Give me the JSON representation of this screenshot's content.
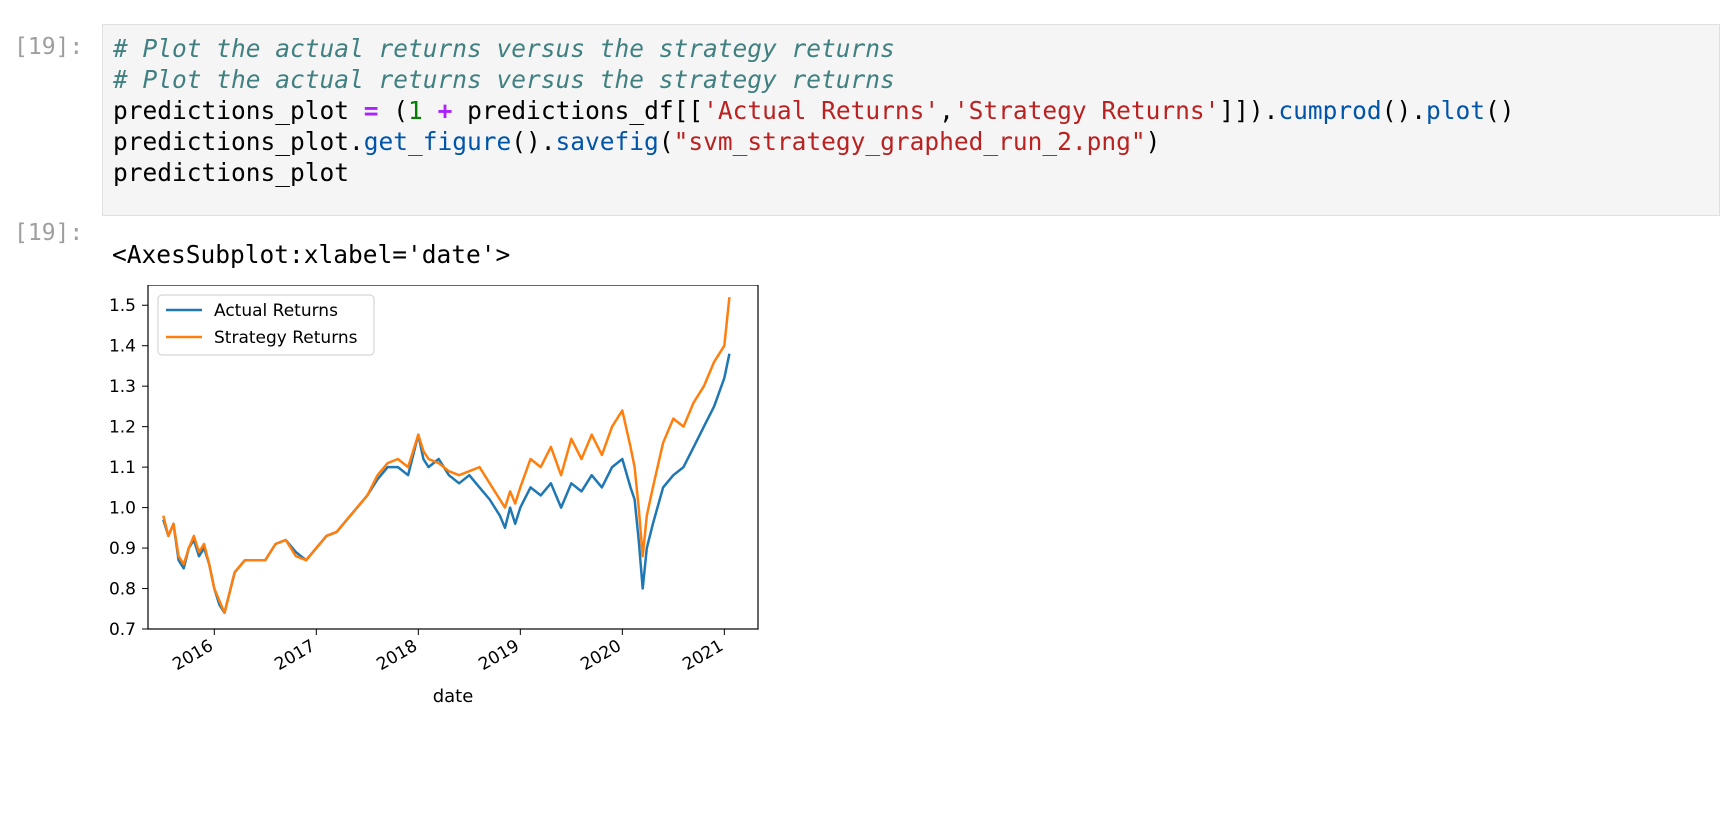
{
  "cell": {
    "in_prompt": "[19]:",
    "out_prompt": "[19]:",
    "code_lines": [
      [
        {
          "t": "# Plot the actual returns versus the strategy returns",
          "c": "cm"
        }
      ],
      [
        {
          "t": "# Plot the actual returns versus the strategy returns",
          "c": "cm"
        }
      ],
      [
        {
          "t": "predictions_plot ",
          "c": ""
        },
        {
          "t": "=",
          "c": "op"
        },
        {
          "t": " (",
          "c": ""
        },
        {
          "t": "1",
          "c": "num"
        },
        {
          "t": " ",
          "c": ""
        },
        {
          "t": "+",
          "c": "op"
        },
        {
          "t": " predictions_df[[",
          "c": ""
        },
        {
          "t": "'Actual Returns'",
          "c": "str"
        },
        {
          "t": ",",
          "c": ""
        },
        {
          "t": "'Strategy Returns'",
          "c": "str"
        },
        {
          "t": "]]).",
          "c": ""
        },
        {
          "t": "cumprod",
          "c": "fn"
        },
        {
          "t": "().",
          "c": ""
        },
        {
          "t": "plot",
          "c": "fn"
        },
        {
          "t": "()",
          "c": ""
        }
      ],
      [
        {
          "t": "predictions_plot.",
          "c": ""
        },
        {
          "t": "get_figure",
          "c": "fn"
        },
        {
          "t": "().",
          "c": ""
        },
        {
          "t": "savefig",
          "c": "fn"
        },
        {
          "t": "(",
          "c": ""
        },
        {
          "t": "\"svm_strategy_graphed_run_2.png\"",
          "c": "str"
        },
        {
          "t": ")",
          "c": ""
        }
      ],
      [
        {
          "t": "predictions_plot",
          "c": ""
        }
      ]
    ],
    "output_text": "<AxesSubplot:xlabel='date'>"
  },
  "chart_data": {
    "type": "line",
    "xlabel": "date",
    "ylabel": "",
    "xlim": [
      2015.35,
      2021.33
    ],
    "ylim": [
      0.7,
      1.55
    ],
    "xticks": [
      2016,
      2017,
      2018,
      2019,
      2020,
      2021
    ],
    "xtick_labels": [
      "2016",
      "2017",
      "2018",
      "2019",
      "2020",
      "2021"
    ],
    "yticks": [
      0.7,
      0.8,
      0.9,
      1.0,
      1.1,
      1.2,
      1.3,
      1.4,
      1.5
    ],
    "ytick_labels": [
      "0.7",
      "0.8",
      "0.9",
      "1.0",
      "1.1",
      "1.2",
      "1.3",
      "1.4",
      "1.5"
    ],
    "legend_position": "upper-left",
    "grid": false,
    "series": [
      {
        "name": "Actual Returns",
        "color": "#1f77b4",
        "x": [
          2015.5,
          2015.55,
          2015.6,
          2015.65,
          2015.7,
          2015.75,
          2015.8,
          2015.85,
          2015.9,
          2015.95,
          2016.0,
          2016.05,
          2016.1,
          2016.15,
          2016.2,
          2016.3,
          2016.4,
          2016.5,
          2016.6,
          2016.7,
          2016.8,
          2016.9,
          2017.0,
          2017.1,
          2017.2,
          2017.3,
          2017.4,
          2017.5,
          2017.6,
          2017.7,
          2017.8,
          2017.9,
          2018.0,
          2018.05,
          2018.1,
          2018.2,
          2018.3,
          2018.4,
          2018.5,
          2018.6,
          2018.7,
          2018.8,
          2018.85,
          2018.9,
          2018.95,
          2019.0,
          2019.1,
          2019.2,
          2019.3,
          2019.4,
          2019.5,
          2019.6,
          2019.7,
          2019.8,
          2019.9,
          2020.0,
          2020.08,
          2020.12,
          2020.16,
          2020.2,
          2020.24,
          2020.3,
          2020.4,
          2020.5,
          2020.6,
          2020.7,
          2020.8,
          2020.9,
          2021.0,
          2021.05
        ],
        "y": [
          0.97,
          0.93,
          0.96,
          0.87,
          0.85,
          0.9,
          0.92,
          0.88,
          0.9,
          0.86,
          0.8,
          0.76,
          0.74,
          0.79,
          0.84,
          0.87,
          0.87,
          0.87,
          0.91,
          0.92,
          0.89,
          0.87,
          0.9,
          0.93,
          0.94,
          0.97,
          1.0,
          1.03,
          1.07,
          1.1,
          1.1,
          1.08,
          1.18,
          1.12,
          1.1,
          1.12,
          1.08,
          1.06,
          1.08,
          1.05,
          1.02,
          0.98,
          0.95,
          1.0,
          0.96,
          1.0,
          1.05,
          1.03,
          1.06,
          1.0,
          1.06,
          1.04,
          1.08,
          1.05,
          1.1,
          1.12,
          1.05,
          1.02,
          0.92,
          0.8,
          0.9,
          0.96,
          1.05,
          1.08,
          1.1,
          1.15,
          1.2,
          1.25,
          1.32,
          1.38
        ]
      },
      {
        "name": "Strategy Returns",
        "color": "#ff7f0e",
        "x": [
          2015.5,
          2015.55,
          2015.6,
          2015.65,
          2015.7,
          2015.75,
          2015.8,
          2015.85,
          2015.9,
          2015.95,
          2016.0,
          2016.05,
          2016.1,
          2016.15,
          2016.2,
          2016.3,
          2016.4,
          2016.5,
          2016.6,
          2016.7,
          2016.8,
          2016.9,
          2017.0,
          2017.1,
          2017.2,
          2017.3,
          2017.4,
          2017.5,
          2017.6,
          2017.7,
          2017.8,
          2017.9,
          2018.0,
          2018.05,
          2018.1,
          2018.2,
          2018.3,
          2018.4,
          2018.5,
          2018.6,
          2018.7,
          2018.8,
          2018.85,
          2018.9,
          2018.95,
          2019.0,
          2019.1,
          2019.2,
          2019.3,
          2019.4,
          2019.5,
          2019.6,
          2019.7,
          2019.8,
          2019.9,
          2020.0,
          2020.08,
          2020.12,
          2020.16,
          2020.2,
          2020.24,
          2020.3,
          2020.4,
          2020.5,
          2020.6,
          2020.7,
          2020.8,
          2020.9,
          2021.0,
          2021.05
        ],
        "y": [
          0.98,
          0.93,
          0.96,
          0.88,
          0.86,
          0.9,
          0.93,
          0.89,
          0.91,
          0.86,
          0.8,
          0.77,
          0.74,
          0.79,
          0.84,
          0.87,
          0.87,
          0.87,
          0.91,
          0.92,
          0.88,
          0.87,
          0.9,
          0.93,
          0.94,
          0.97,
          1.0,
          1.03,
          1.08,
          1.11,
          1.12,
          1.1,
          1.18,
          1.14,
          1.12,
          1.11,
          1.09,
          1.08,
          1.09,
          1.1,
          1.06,
          1.02,
          1.0,
          1.04,
          1.01,
          1.05,
          1.12,
          1.1,
          1.15,
          1.08,
          1.17,
          1.12,
          1.18,
          1.13,
          1.2,
          1.24,
          1.15,
          1.1,
          1.0,
          0.88,
          0.98,
          1.05,
          1.16,
          1.22,
          1.2,
          1.26,
          1.3,
          1.36,
          1.4,
          1.52
        ]
      }
    ]
  }
}
